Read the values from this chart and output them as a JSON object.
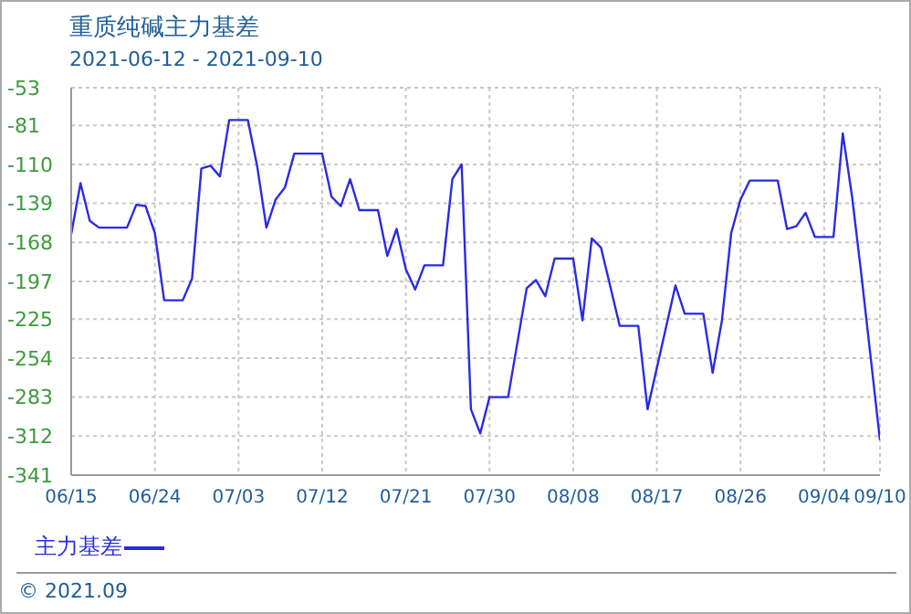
{
  "chart_data": {
    "type": "line",
    "title": "重质纯碱主力基差",
    "subtitle": "2021-06-12 - 2021-09-10",
    "x": [
      "2021-06-15",
      "2021-06-16",
      "2021-06-17",
      "2021-06-18",
      "2021-06-21",
      "2021-06-22",
      "2021-06-23",
      "2021-06-24",
      "2021-06-25",
      "2021-06-27",
      "2021-06-28",
      "2021-06-29",
      "2021-06-30",
      "2021-07-01",
      "2021-07-02",
      "2021-07-04",
      "2021-07-05",
      "2021-07-06",
      "2021-07-07",
      "2021-07-08",
      "2021-07-09",
      "2021-07-12",
      "2021-07-13",
      "2021-07-14",
      "2021-07-15",
      "2021-07-16",
      "2021-07-18",
      "2021-07-19",
      "2021-07-20",
      "2021-07-21",
      "2021-07-22",
      "2021-07-23",
      "2021-07-25",
      "2021-07-26",
      "2021-07-27",
      "2021-07-28",
      "2021-07-29",
      "2021-07-30",
      "2021-08-01",
      "2021-08-03",
      "2021-08-04",
      "2021-08-05",
      "2021-08-06",
      "2021-08-08",
      "2021-08-09",
      "2021-08-10",
      "2021-08-11",
      "2021-08-13",
      "2021-08-15",
      "2021-08-16",
      "2021-08-19",
      "2021-08-20",
      "2021-08-22",
      "2021-08-23",
      "2021-08-24",
      "2021-08-25",
      "2021-08-26",
      "2021-08-27",
      "2021-08-30",
      "2021-08-31",
      "2021-09-01",
      "2021-09-02",
      "2021-09-03",
      "2021-09-05",
      "2021-09-06",
      "2021-09-07",
      "2021-09-08",
      "2021-09-10"
    ],
    "series": [
      {
        "name": "主力基差",
        "color": "#2a2ae6",
        "values": [
          -162,
          -124,
          -152,
          -157,
          -157,
          -140,
          -141,
          -161,
          -211,
          -211,
          -195,
          -113,
          -111,
          -119,
          -77,
          -77,
          -111,
          -157,
          -136,
          -127,
          -102,
          -102,
          -134,
          -141,
          -121,
          -144,
          -144,
          -178,
          -158,
          -188,
          -203,
          -185,
          -185,
          -121,
          -110,
          -292,
          -310,
          -283,
          -283,
          -202,
          -196,
          -208,
          -180,
          -180,
          -226,
          -165,
          -172,
          -230,
          -230,
          -292,
          -200,
          -221,
          -221,
          -265,
          -226,
          -161,
          -136,
          -122,
          -122,
          -158,
          -156,
          -146,
          -164,
          -164,
          -87,
          -134,
          -192,
          -315
        ]
      }
    ],
    "xlim": [
      "2021-06-15",
      "2021-09-10"
    ],
    "xticks": [
      {
        "value": "2021-06-15",
        "label": "06/15"
      },
      {
        "value": "2021-06-24",
        "label": "06/24"
      },
      {
        "value": "2021-07-03",
        "label": "07/03"
      },
      {
        "value": "2021-07-12",
        "label": "07/12"
      },
      {
        "value": "2021-07-21",
        "label": "07/21"
      },
      {
        "value": "2021-07-30",
        "label": "07/30"
      },
      {
        "value": "2021-08-08",
        "label": "08/08"
      },
      {
        "value": "2021-08-17",
        "label": "08/17"
      },
      {
        "value": "2021-08-26",
        "label": "08/26"
      },
      {
        "value": "2021-09-04",
        "label": "09/04"
      },
      {
        "value": "2021-09-10",
        "label": "09/10"
      }
    ],
    "ylim": [
      -341,
      -53
    ],
    "yticks": [
      -341,
      -312,
      -283,
      -254,
      -225,
      -197,
      -168,
      -139,
      -110,
      -81,
      -53
    ],
    "grid": true,
    "legend": "bottom left",
    "marker": "none",
    "line_style": "solid",
    "annotations": [
      "© 2021.09"
    ]
  }
}
